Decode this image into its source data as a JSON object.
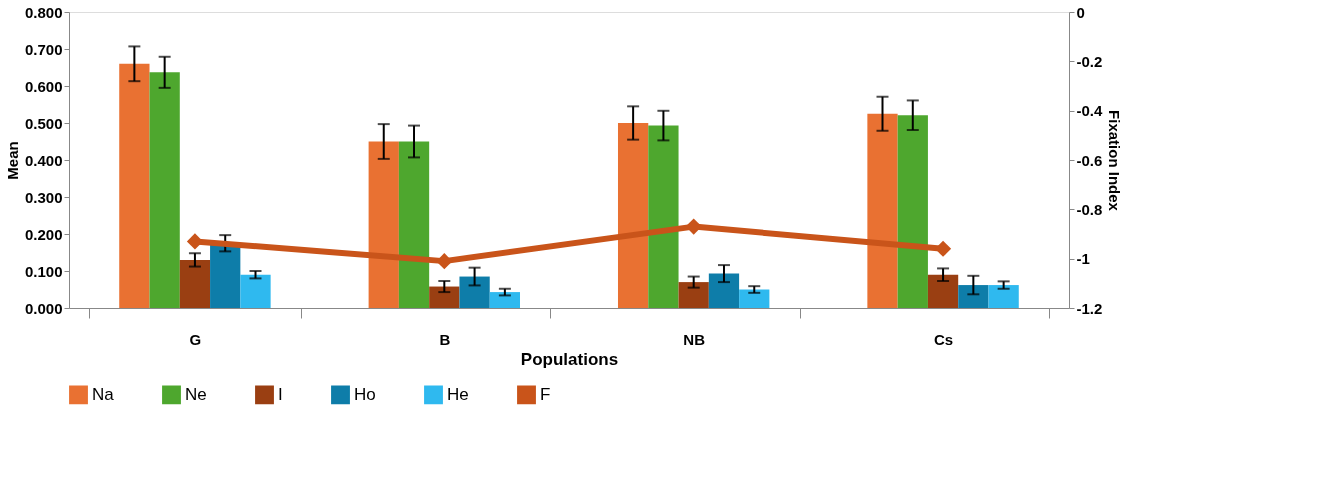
{
  "chart_data": {
    "type": "bar",
    "xlabel": "Populations",
    "ylabel": "Mean",
    "y2label": "Fixation Index",
    "categories": [
      "G",
      "B",
      "NB",
      "Cs"
    ],
    "series": [
      {
        "name": "Na",
        "color": "#e97132",
        "values": [
          0.66,
          0.45,
          0.5,
          0.525
        ],
        "errors": [
          0.047,
          0.047,
          0.045,
          0.046
        ]
      },
      {
        "name": "Ne",
        "color": "#4ea72e",
        "values": [
          0.637,
          0.45,
          0.493,
          0.521
        ],
        "errors": [
          0.042,
          0.043,
          0.04,
          0.04
        ]
      },
      {
        "name": "I",
        "color": "#9a3f12",
        "values": [
          0.13,
          0.058,
          0.07,
          0.09
        ],
        "errors": [
          0.018,
          0.015,
          0.015,
          0.017
        ]
      },
      {
        "name": "Ho",
        "color": "#0e7da9",
        "values": [
          0.175,
          0.085,
          0.093,
          0.062
        ],
        "errors": [
          0.022,
          0.024,
          0.023,
          0.025
        ]
      },
      {
        "name": "He",
        "color": "#2fb9ef",
        "values": [
          0.09,
          0.043,
          0.05,
          0.062
        ],
        "errors": [
          0.01,
          0.009,
          0.009,
          0.01
        ]
      },
      {
        "name": "F",
        "color": "#c9541a",
        "type": "line",
        "axis": "y2",
        "values": [
          -0.93,
          -1.01,
          -0.87,
          -0.96
        ]
      }
    ],
    "ylim": [
      0,
      0.8
    ],
    "yticks": [
      {
        "value": 0,
        "label": "0.000"
      },
      {
        "value": 0.1,
        "label": "0.100"
      },
      {
        "value": 0.2,
        "label": "0.200"
      },
      {
        "value": 0.3,
        "label": "0.300"
      },
      {
        "value": 0.4,
        "label": "0.400"
      },
      {
        "value": 0.5,
        "label": "0.500"
      },
      {
        "value": 0.6,
        "label": "0.600"
      },
      {
        "value": 0.7,
        "label": "0.700"
      },
      {
        "value": 0.8,
        "label": "0.800"
      }
    ],
    "y2lim": [
      -1.2,
      0
    ],
    "y2ticks": [
      -1.2,
      -1,
      -0.8,
      -0.6,
      -0.4,
      -0.2,
      0
    ],
    "marker": "diamond",
    "line_style": "solid",
    "legend": "bottom",
    "grid": false
  }
}
